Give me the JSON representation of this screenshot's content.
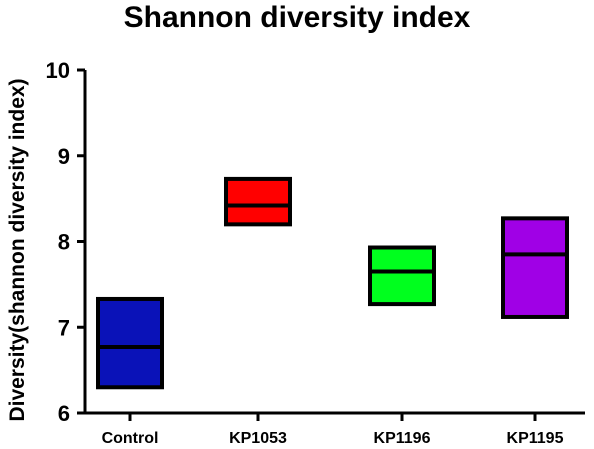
{
  "chart_data": {
    "type": "box",
    "title": "Shannon diversity index",
    "xlabel": "",
    "ylabel": "Diversity(shannon diversity index)",
    "ylim": [
      6,
      10
    ],
    "yticks": [
      6,
      7,
      8,
      9,
      10
    ],
    "grid": false,
    "legend": "none",
    "categories": [
      "Control",
      "KP1053",
      "KP1196",
      "KP1195"
    ],
    "boxes": [
      {
        "category": "Control",
        "min": 6.3,
        "median": 6.77,
        "max": 7.33,
        "color": "#0a12b8"
      },
      {
        "category": "KP1053",
        "min": 8.2,
        "median": 8.42,
        "max": 8.73,
        "color": "#ff0000"
      },
      {
        "category": "KP1196",
        "min": 7.27,
        "median": 7.65,
        "max": 7.93,
        "color": "#00ff1e"
      },
      {
        "category": "KP1195",
        "min": 7.12,
        "median": 7.85,
        "max": 8.27,
        "color": "#a000e6"
      }
    ]
  }
}
